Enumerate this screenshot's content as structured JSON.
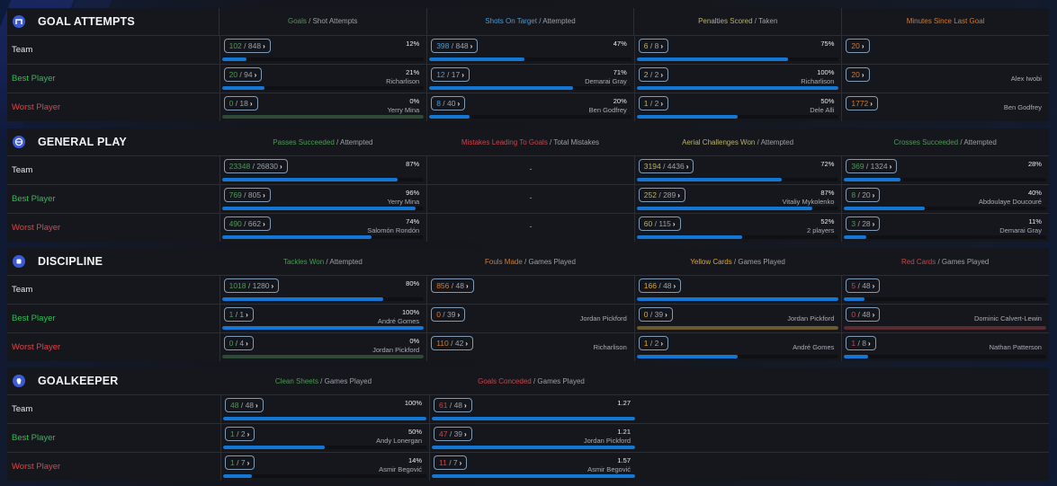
{
  "colors": {
    "bar": "#1477d6",
    "best_label": "#2fbf52",
    "worst_label": "#d8474b",
    "section_icon_bg": "#3b5bd6"
  },
  "row_labels": {
    "team": "Team",
    "best": "Best Player",
    "worst": "Worst Player"
  },
  "badge_chevron": "›",
  "sections": [
    {
      "title": "GOAL ATTEMPTS",
      "icon": "goal-icon",
      "columns": [
        {
          "head_a": "Goals",
          "head_sep": " / ",
          "head_b": "Shot Attempts",
          "color": "green",
          "rows": [
            {
              "a": "102",
              "b": "848",
              "pct": "12%",
              "fraction": 0.12,
              "player": ""
            },
            {
              "a": "20",
              "b": "94",
              "pct": "21%",
              "fraction": 0.21,
              "player": "Richarlison"
            },
            {
              "a": "0",
              "b": "18",
              "pct": "0%",
              "fraction": 1.0,
              "zero": true,
              "player": "Yerry Mina"
            }
          ]
        },
        {
          "head_a": "Shots On Target",
          "head_sep": " / ",
          "head_b": "Attempted",
          "color": "blue",
          "rows": [
            {
              "a": "398",
              "b": "848",
              "pct": "47%",
              "fraction": 0.47,
              "player": ""
            },
            {
              "a": "12",
              "b": "17",
              "pct": "71%",
              "fraction": 0.71,
              "player": "Demarai Gray"
            },
            {
              "a": "8",
              "b": "40",
              "pct": "20%",
              "fraction": 0.2,
              "player": "Ben Godfrey"
            }
          ]
        },
        {
          "head_a": "Penalties Scored",
          "head_sep": " / ",
          "head_b": "Taken",
          "color": "olive",
          "rows": [
            {
              "a": "6",
              "b": "8",
              "pct": "75%",
              "fraction": 0.75,
              "player": ""
            },
            {
              "a": "2",
              "b": "2",
              "pct": "100%",
              "fraction": 1.0,
              "player": "Richarlison"
            },
            {
              "a": "1",
              "b": "2",
              "pct": "50%",
              "fraction": 0.5,
              "player": "Dele Alli"
            }
          ]
        },
        {
          "head_a": "Minutes Since Last Goal",
          "head_sep": "",
          "head_b": "",
          "color": "orange",
          "single": true,
          "rows": [
            {
              "a": "20",
              "player": ""
            },
            {
              "a": "20",
              "player": "Alex Iwobi"
            },
            {
              "a": "1772",
              "player": "Ben Godfrey"
            }
          ]
        }
      ]
    },
    {
      "title": "GENERAL PLAY",
      "icon": "ball-icon",
      "columns": [
        {
          "head_a": "Passes Succeeded",
          "head_sep": " / ",
          "head_b": "Attempted",
          "color": "green",
          "rows": [
            {
              "a": "23348",
              "b": "26830",
              "pct": "87%",
              "fraction": 0.87,
              "player": ""
            },
            {
              "a": "769",
              "b": "805",
              "pct": "96%",
              "fraction": 0.96,
              "player": "Yerry Mina"
            },
            {
              "a": "490",
              "b": "662",
              "pct": "74%",
              "fraction": 0.74,
              "player": "Salomón Rondón"
            }
          ]
        },
        {
          "head_a": "Mistakes Leading To Goals",
          "head_sep": " / ",
          "head_b": "Total Mistakes",
          "color": "red",
          "empty": true,
          "rows": [
            {
              "dash": "-"
            },
            {
              "dash": "-"
            },
            {
              "dash": "-"
            }
          ]
        },
        {
          "head_a": "Aerial Challenges Won",
          "head_sep": " / ",
          "head_b": "Attempted",
          "color": "olive",
          "rows": [
            {
              "a": "3194",
              "b": "4436",
              "pct": "72%",
              "fraction": 0.72,
              "player": ""
            },
            {
              "a": "252",
              "b": "289",
              "pct": "87%",
              "fraction": 0.87,
              "player": "Vitaliy Mykolenko"
            },
            {
              "a": "60",
              "b": "115",
              "pct": "52%",
              "fraction": 0.52,
              "player": "2 players"
            }
          ]
        },
        {
          "head_a": "Crosses Succeeded",
          "head_sep": " / ",
          "head_b": "Attempted",
          "color": "green",
          "rows": [
            {
              "a": "369",
              "b": "1324",
              "pct": "28%",
              "fraction": 0.28,
              "player": ""
            },
            {
              "a": "8",
              "b": "20",
              "pct": "40%",
              "fraction": 0.4,
              "player": "Abdoulaye Doucouré"
            },
            {
              "a": "3",
              "b": "28",
              "pct": "11%",
              "fraction": 0.11,
              "player": "Demarai Gray"
            }
          ]
        }
      ]
    },
    {
      "title": "DISCIPLINE",
      "icon": "card-icon",
      "columns": [
        {
          "head_a": "Tackles Won",
          "head_sep": " / ",
          "head_b": "Attempted",
          "color": "green",
          "rows": [
            {
              "a": "1018",
              "b": "1280",
              "pct": "80%",
              "fraction": 0.8,
              "player": ""
            },
            {
              "a": "1",
              "b": "1",
              "pct": "100%",
              "fraction": 1.0,
              "player": "André Gomes"
            },
            {
              "a": "0",
              "b": "4",
              "pct": "0%",
              "fraction": 1.0,
              "zero": true,
              "player": "Jordan Pickford"
            }
          ]
        },
        {
          "head_a": "Fouls Made",
          "head_sep": " / ",
          "head_b": "Games Played",
          "color": "orange",
          "nobar": true,
          "rows": [
            {
              "a": "856",
              "b": "48",
              "player": ""
            },
            {
              "a": "0",
              "b": "39",
              "player": "Jordan Pickford"
            },
            {
              "a": "110",
              "b": "42",
              "player": "Richarlison"
            }
          ]
        },
        {
          "head_a": "Yellow Cards",
          "head_sep": " / ",
          "head_b": "Games Played",
          "color": "yellow",
          "rows": [
            {
              "a": "166",
              "b": "48",
              "fraction": 1.0,
              "player": ""
            },
            {
              "a": "0",
              "b": "39",
              "fraction": 1.0,
              "zeroFill": "olive",
              "player": "Jordan Pickford"
            },
            {
              "a": "1",
              "b": "2",
              "fraction": 0.5,
              "player": "André Gomes"
            }
          ]
        },
        {
          "head_a": "Red Cards",
          "head_sep": " / ",
          "head_b": "Games Played",
          "color": "red",
          "rows": [
            {
              "a": "5",
              "b": "48",
              "fraction": 0.1,
              "player": ""
            },
            {
              "a": "0",
              "b": "48",
              "fraction": 1.0,
              "zeroFill": "maroon",
              "player": "Dominic Calvert-Lewin"
            },
            {
              "a": "1",
              "b": "8",
              "fraction": 0.12,
              "player": "Nathan Patterson"
            }
          ]
        }
      ]
    },
    {
      "title": "GOALKEEPER",
      "icon": "glove-icon",
      "columns": [
        {
          "head_a": "Clean Sheets",
          "head_sep": " / ",
          "head_b": "Games Played",
          "color": "green",
          "rows": [
            {
              "a": "48",
              "b": "48",
              "pct": "100%",
              "fraction": 1.0,
              "player": ""
            },
            {
              "a": "1",
              "b": "2",
              "pct": "50%",
              "fraction": 0.5,
              "player": "Andy Lonergan"
            },
            {
              "a": "1",
              "b": "7",
              "pct": "14%",
              "fraction": 0.14,
              "player": "Asmir Begović"
            }
          ]
        },
        {
          "head_a": "Goals Conceded",
          "head_sep": " / ",
          "head_b": "Games Played",
          "color": "red",
          "rows": [
            {
              "a": "61",
              "b": "48",
              "pct": "1.27",
              "fraction": 1.0,
              "player": ""
            },
            {
              "a": "47",
              "b": "39",
              "pct": "1.21",
              "fraction": 1.0,
              "player": "Jordan Pickford"
            },
            {
              "a": "11",
              "b": "7",
              "pct": "1.57",
              "fraction": 1.0,
              "player": "Asmir Begović"
            }
          ]
        }
      ]
    }
  ]
}
